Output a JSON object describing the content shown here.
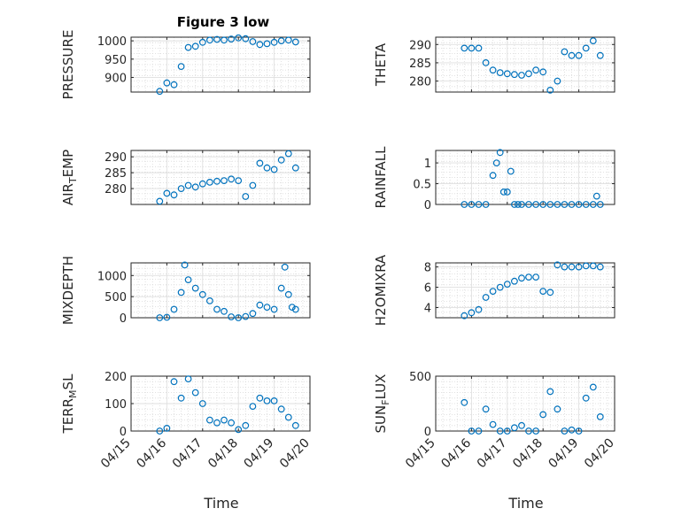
{
  "title": "Figure 3 low",
  "xlabel": "Time",
  "x_ticks": [
    "04/15",
    "04/16",
    "04/17",
    "04/18",
    "04/19",
    "04/20"
  ],
  "chart_data": [
    {
      "type": "scatter",
      "ylabel": "PRESSURE",
      "ylim": [
        860,
        1010
      ],
      "y_ticks": [
        900,
        950,
        1000
      ],
      "x": [
        15.8,
        16.0,
        16.2,
        16.4,
        16.6,
        16.8,
        17.0,
        17.2,
        17.4,
        17.6,
        17.8,
        18.0,
        18.2,
        18.4,
        18.6,
        18.8,
        19.0,
        19.2,
        19.4,
        19.6
      ],
      "values": [
        862,
        885,
        880,
        930,
        982,
        985,
        996,
        1002,
        1004,
        1002,
        1005,
        1008,
        1006,
        998,
        990,
        992,
        996,
        1000,
        1002,
        997
      ]
    },
    {
      "type": "scatter",
      "ylabel": "THETA",
      "ylim": [
        277,
        292
      ],
      "y_ticks": [
        280,
        285,
        290
      ],
      "x": [
        15.8,
        16.0,
        16.2,
        16.4,
        16.6,
        16.8,
        17.0,
        17.2,
        17.4,
        17.6,
        17.8,
        18.0,
        18.2,
        18.4,
        18.6,
        18.8,
        19.0,
        19.2,
        19.4,
        19.6
      ],
      "values": [
        289,
        289,
        289,
        285,
        283,
        282.3,
        282,
        281.8,
        281.6,
        282,
        283,
        282.5,
        277.5,
        280,
        288,
        287,
        287,
        289,
        291,
        287
      ]
    },
    {
      "type": "scatter",
      "ylabel": "AIR_TEMP",
      "ylim": [
        275,
        292
      ],
      "y_ticks": [
        280,
        285,
        290
      ],
      "x": [
        15.8,
        16.0,
        16.2,
        16.4,
        16.6,
        16.8,
        17.0,
        17.2,
        17.4,
        17.6,
        17.8,
        18.0,
        18.2,
        18.4,
        18.6,
        18.8,
        19.0,
        19.2,
        19.4,
        19.6
      ],
      "values": [
        276,
        278.5,
        278,
        280,
        281,
        280.5,
        281.5,
        282,
        282.3,
        282.5,
        283,
        282.5,
        277.5,
        281,
        288,
        286.5,
        286,
        289,
        291,
        286.5
      ]
    },
    {
      "type": "scatter",
      "ylabel": "RAINFALL",
      "ylim": [
        0,
        1.3
      ],
      "y_ticks": [
        0,
        0.5,
        1
      ],
      "x": [
        15.8,
        16.0,
        16.2,
        16.4,
        16.6,
        16.7,
        16.8,
        16.9,
        17.0,
        17.1,
        17.2,
        17.3,
        17.4,
        17.6,
        17.8,
        18.0,
        18.2,
        18.4,
        18.6,
        18.8,
        19.0,
        19.2,
        19.4,
        19.5,
        19.6
      ],
      "values": [
        0,
        0,
        0,
        0,
        0.7,
        1.0,
        1.25,
        0.3,
        0.3,
        0.8,
        0,
        0,
        0,
        0,
        0,
        0,
        0,
        0,
        0,
        0,
        0,
        0,
        0,
        0.2,
        0
      ]
    },
    {
      "type": "scatter",
      "ylabel": "MIXDEPTH",
      "ylim": [
        0,
        1300
      ],
      "y_ticks": [
        0,
        500,
        1000
      ],
      "x": [
        15.8,
        16.0,
        16.2,
        16.4,
        16.5,
        16.6,
        16.8,
        17.0,
        17.2,
        17.4,
        17.6,
        17.8,
        18.0,
        18.2,
        18.4,
        18.6,
        18.8,
        19.0,
        19.2,
        19.3,
        19.4,
        19.5,
        19.6
      ],
      "values": [
        0,
        10,
        200,
        600,
        1250,
        900,
        700,
        550,
        400,
        200,
        150,
        20,
        0,
        30,
        100,
        300,
        250,
        200,
        700,
        1200,
        550,
        250,
        200
      ]
    },
    {
      "type": "scatter",
      "ylabel": "H2OMIXRA",
      "ylim": [
        3,
        8.4
      ],
      "y_ticks": [
        4,
        6,
        8
      ],
      "x": [
        15.8,
        16.0,
        16.2,
        16.4,
        16.6,
        16.8,
        17.0,
        17.2,
        17.4,
        17.6,
        17.8,
        18.0,
        18.2,
        18.4,
        18.6,
        18.8,
        19.0,
        19.2,
        19.4,
        19.6
      ],
      "values": [
        3.2,
        3.5,
        3.8,
        5.0,
        5.6,
        6.0,
        6.3,
        6.6,
        6.9,
        7.0,
        7.0,
        5.6,
        5.5,
        8.2,
        8.0,
        8.0,
        8.0,
        8.1,
        8.1,
        8.0
      ]
    },
    {
      "type": "scatter",
      "ylabel": "TERR_MSL",
      "ylim": [
        0,
        200
      ],
      "y_ticks": [
        0,
        100,
        200
      ],
      "x": [
        15.8,
        16.0,
        16.2,
        16.4,
        16.6,
        16.8,
        17.0,
        17.2,
        17.4,
        17.6,
        17.8,
        18.0,
        18.2,
        18.4,
        18.6,
        18.8,
        19.0,
        19.2,
        19.4,
        19.6
      ],
      "values": [
        0,
        10,
        180,
        120,
        190,
        140,
        100,
        40,
        30,
        40,
        30,
        5,
        20,
        90,
        120,
        110,
        110,
        80,
        50,
        20
      ]
    },
    {
      "type": "scatter",
      "ylabel": "SUN_FLUX",
      "ylim": [
        0,
        500
      ],
      "y_ticks": [
        0,
        500
      ],
      "x": [
        15.8,
        16.0,
        16.2,
        16.4,
        16.6,
        16.8,
        17.0,
        17.2,
        17.4,
        17.6,
        17.8,
        18.0,
        18.2,
        18.4,
        18.6,
        18.8,
        19.0,
        19.2,
        19.4,
        19.6
      ],
      "values": [
        260,
        0,
        0,
        200,
        60,
        0,
        0,
        30,
        50,
        0,
        0,
        150,
        360,
        200,
        0,
        10,
        0,
        300,
        400,
        130
      ]
    }
  ]
}
